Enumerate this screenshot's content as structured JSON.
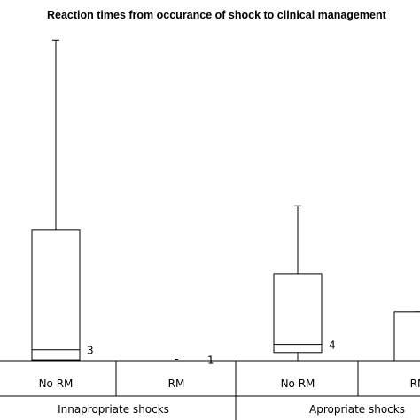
{
  "chart_data": {
    "type": "box",
    "title": "Reaction times from occurance of shock to clinical management",
    "groups": [
      {
        "label": "Innapropriate shocks",
        "categories": [
          "No RM",
          "RM"
        ]
      },
      {
        "label": "Apropriate shocks",
        "categories": [
          "No RM",
          "RM"
        ]
      }
    ],
    "boxes": [
      {
        "category": "No RM",
        "group": "Innapropriate shocks",
        "min": 0.3,
        "q1": 0.3,
        "median": 4.0,
        "q3": 48.0,
        "max": 118.0,
        "n_label": "3"
      },
      {
        "category": "RM",
        "group": "Innapropriate shocks",
        "min": 0.5,
        "q1": 0.5,
        "median": 0.5,
        "q3": 0.5,
        "max": 0.5,
        "n_label": "1"
      },
      {
        "category": "No RM",
        "group": "Apropriate shocks",
        "min": 0.0,
        "q1": 3.0,
        "median": 6.0,
        "q3": 32.0,
        "max": 57.0,
        "n_label": "4"
      },
      {
        "category": "RM",
        "group": "Apropriate shocks",
        "min": 0.0,
        "q1": 0.0,
        "median": 0.0,
        "q3": 18.0,
        "max": 18.0,
        "n_label": ""
      }
    ],
    "ylim": [
      0,
      122
    ],
    "grid": false
  }
}
